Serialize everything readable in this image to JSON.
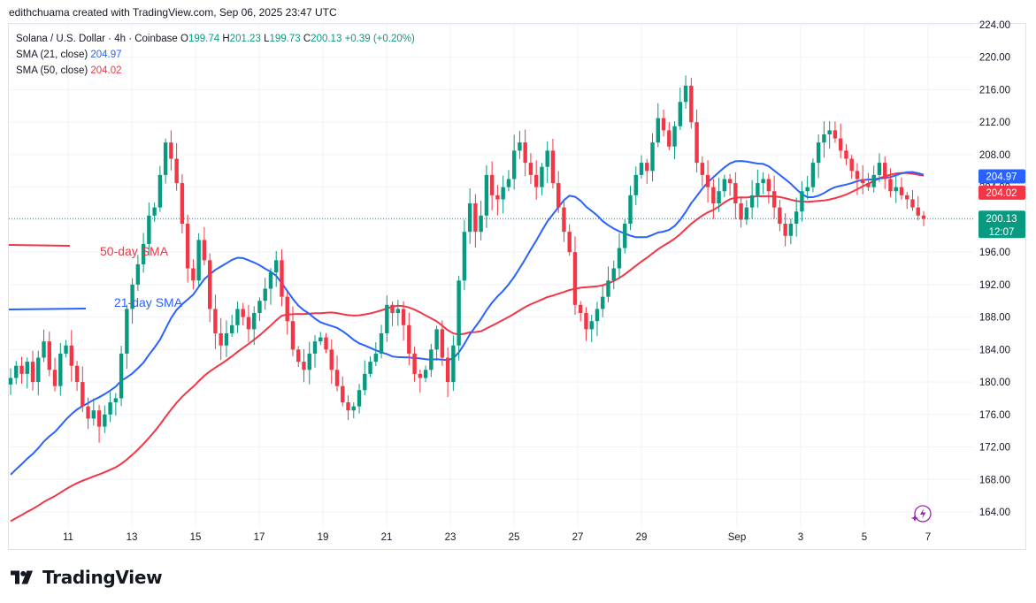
{
  "header": {
    "attribution": "edithchuama created with TradingView.com, Sep 06, 2025 23:47 UTC"
  },
  "legend": {
    "symbol": "Solana / U.S. Dollar · 4h · Coinbase",
    "ohlc": {
      "o_label": "O",
      "o": "199.74",
      "h_label": "H",
      "h": "201.23",
      "l_label": "L",
      "l": "199.73",
      "c_label": "C",
      "c": "200.13",
      "change": "+0.39 (+0.20%)"
    },
    "sma21": {
      "label": "SMA (21, close)",
      "value": "204.97"
    },
    "sma50": {
      "label": "SMA (50, close)",
      "value": "204.02"
    }
  },
  "annotations": {
    "sma50_label": "50-day SMA",
    "sma21_label": "21-day SMA"
  },
  "price_badges": {
    "sma21": "204.97",
    "sma50": "204.02",
    "last_price": "200.13",
    "countdown": "12:07"
  },
  "brand": {
    "name": "TradingView"
  },
  "colors": {
    "up": "#089981",
    "down": "#f23645",
    "sma21": "#2962ff",
    "sma50": "#f23645",
    "grid": "#f0f3fa",
    "text": "#131722"
  },
  "chart_data": {
    "type": "candlestick",
    "title": "Solana / U.S. Dollar · 4h · Coinbase",
    "ylim": [
      162,
      225
    ],
    "y_ticks": [
      164,
      168,
      172,
      176,
      180,
      184,
      188,
      192,
      196,
      200,
      204,
      208,
      212,
      216,
      220,
      224
    ],
    "x_range": [
      9.0,
      7.0
    ],
    "x_ticks": [
      {
        "label": "11",
        "day": 11
      },
      {
        "label": "13",
        "day": 13
      },
      {
        "label": "15",
        "day": 15
      },
      {
        "label": "17",
        "day": 17
      },
      {
        "label": "19",
        "day": 19
      },
      {
        "label": "21",
        "day": 21
      },
      {
        "label": "23",
        "day": 23
      },
      {
        "label": "25",
        "day": 25
      },
      {
        "label": "27",
        "day": 27
      },
      {
        "label": "29",
        "day": 29
      },
      {
        "label": "Sep",
        "day": 32
      },
      {
        "label": "3",
        "day": 34
      },
      {
        "label": "5",
        "day": 36
      },
      {
        "label": "7",
        "day": 38
      }
    ],
    "last_price": 200.13,
    "ohlc_closes": [
      180.5,
      182.0,
      181.0,
      182.5,
      180.0,
      183.0,
      185.0,
      181.5,
      179.5,
      183.5,
      184.5,
      182.0,
      180.0,
      177.0,
      175.5,
      176.5,
      174.5,
      176.0,
      177.5,
      178.0,
      183.5,
      189.0,
      192.0,
      194.5,
      197.0,
      200.5,
      201.5,
      205.5,
      209.5,
      207.5,
      204.5,
      199.5,
      194.0,
      192.5,
      197.5,
      195.0,
      189.0,
      186.0,
      184.5,
      186.0,
      187.0,
      189.0,
      188.0,
      186.5,
      188.5,
      190.0,
      191.5,
      193.5,
      195.0,
      190.5,
      187.5,
      184.0,
      182.5,
      181.5,
      183.5,
      185.0,
      185.5,
      184.0,
      181.5,
      179.5,
      177.5,
      176.5,
      177.0,
      179.0,
      181.0,
      182.5,
      183.5,
      186.0,
      189.5,
      188.5,
      189.0,
      187.0,
      183.5,
      181.0,
      180.5,
      181.5,
      184.0,
      186.5,
      183.0,
      180.0,
      184.5,
      192.5,
      198.5,
      202.0,
      198.5,
      200.5,
      205.5,
      203.0,
      202.5,
      204.0,
      205.0,
      208.5,
      209.5,
      207.0,
      205.5,
      204.0,
      206.5,
      208.5,
      204.5,
      201.5,
      198.5,
      196.0,
      189.5,
      188.5,
      186.5,
      187.5,
      189.0,
      190.5,
      192.5,
      194.0,
      196.5,
      199.5,
      203.0,
      205.5,
      207.0,
      206.0,
      209.5,
      212.5,
      211.0,
      209.0,
      211.5,
      214.5,
      216.5,
      212.0,
      207.0,
      205.5,
      204.0,
      202.0,
      203.5,
      205.0,
      204.5,
      202.0,
      200.0,
      201.5,
      203.0,
      204.5,
      205.0,
      203.5,
      201.5,
      199.5,
      198.0,
      199.5,
      201.0,
      203.5,
      204.0,
      207.0,
      209.5,
      210.5,
      211.0,
      210.0,
      208.5,
      207.5,
      206.0,
      205.0,
      204.5,
      204.0,
      205.5,
      207.0,
      205.0,
      203.5,
      204.0,
      203.0,
      202.5,
      201.5,
      200.5,
      200.1
    ],
    "series": [
      {
        "name": "SMA (21, close)",
        "last": 204.97
      },
      {
        "name": "SMA (50, close)",
        "last": 204.02
      }
    ]
  }
}
